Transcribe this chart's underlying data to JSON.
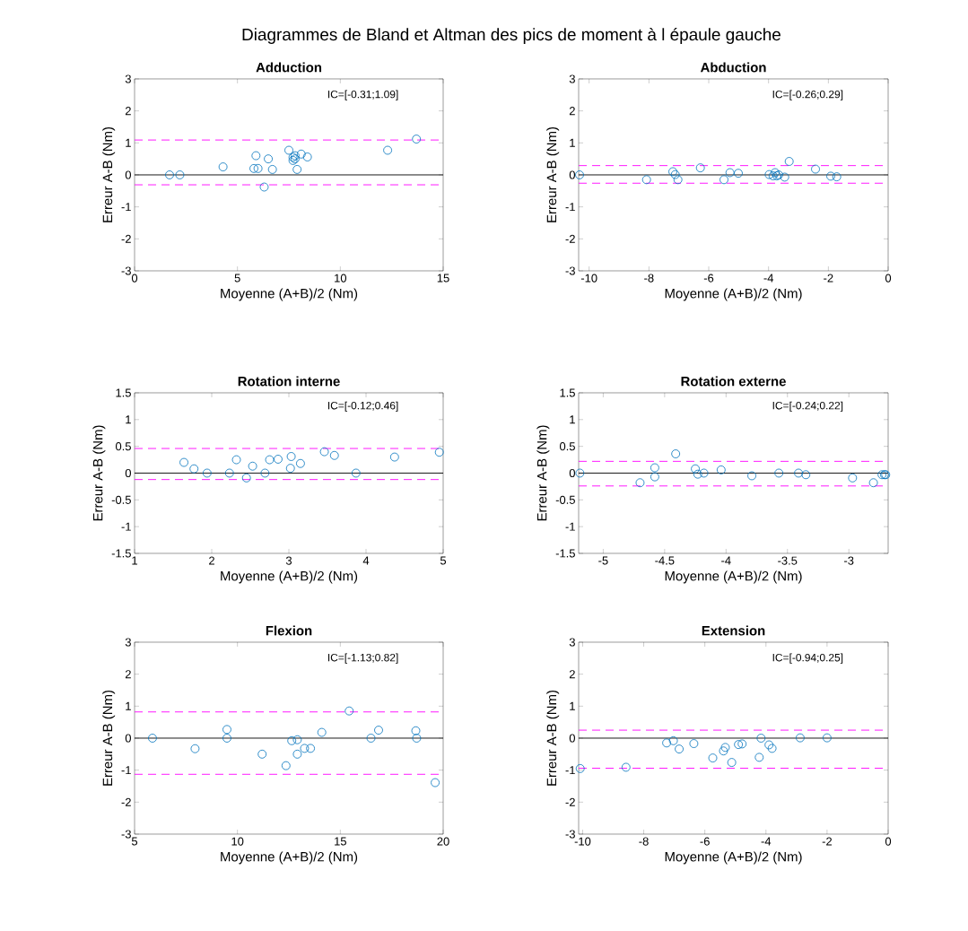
{
  "chart_data": [
    {
      "type": "other",
      "title": "Diagrammes de Bland et Altman des pics de moment à l épaule gauche"
    },
    {
      "type": "scatter",
      "title": "Adduction",
      "xlabel": "Moyenne (A+B)/2 (Nm)",
      "ylabel": "Erreur A-B (Nm)",
      "marker": "circle",
      "xlim": [
        0,
        15
      ],
      "ylim": [
        -3,
        3
      ],
      "xticks": [
        0,
        5,
        10,
        15
      ],
      "yticks": [
        -3,
        -2,
        -1,
        0,
        1,
        2,
        3
      ],
      "annotations": [
        "IC=[-0.31;1.09]"
      ],
      "series": [
        {
          "color": "#0072bd",
          "x": [
            1.7,
            2.2,
            4.3,
            5.8,
            5.9,
            6.0,
            6.3,
            6.5,
            6.7,
            7.5,
            7.7,
            7.7,
            7.8,
            7.8,
            7.9,
            8.1,
            8.4,
            12.3,
            13.7
          ],
          "values": [
            0,
            0,
            0.25,
            0.2,
            0.6,
            0.2,
            -0.38,
            0.5,
            0.17,
            0.77,
            0.45,
            0.55,
            0.6,
            0.5,
            0.17,
            0.65,
            0.56,
            0.77,
            1.12
          ]
        }
      ],
      "ref_lines": [
        {
          "axis": "y",
          "value": 0,
          "color": "#000000"
        },
        {
          "axis": "y",
          "value": 1.09,
          "color": "#ff00ff",
          "line_style": "dashed"
        },
        {
          "axis": "y",
          "value": -0.31,
          "color": "#ff00ff",
          "line_style": "dashed"
        }
      ]
    },
    {
      "type": "scatter",
      "title": "Abduction",
      "xlabel": "Moyenne (A+B)/2 (Nm)",
      "ylabel": "Erreur A-B (Nm)",
      "marker": "circle",
      "xlim": [
        -10.35,
        0
      ],
      "ylim": [
        -3,
        3
      ],
      "xticks": [
        -10,
        -8,
        -6,
        -4,
        -2,
        0
      ],
      "yticks": [
        -3,
        -2,
        -1,
        0,
        1,
        2,
        3
      ],
      "annotations": [
        "IC=[-0.26;0.29]"
      ],
      "series": [
        {
          "color": "#0072bd",
          "x": [
            -10.32,
            -8.08,
            -7.2,
            -7.12,
            -7.03,
            -6.28,
            -5.49,
            -5.29,
            -5.01,
            -3.98,
            -3.85,
            -3.78,
            -3.72,
            -3.66,
            -3.46,
            -3.31,
            -2.43,
            -1.92,
            -1.72
          ],
          "values": [
            0,
            -0.15,
            0.1,
            0.01,
            -0.15,
            0.22,
            -0.15,
            0.07,
            0.05,
            0.01,
            -0.03,
            0.07,
            -0.03,
            0,
            -0.07,
            0.42,
            0.18,
            -0.04,
            -0.06
          ]
        }
      ],
      "ref_lines": [
        {
          "axis": "y",
          "value": 0,
          "color": "#000000"
        },
        {
          "axis": "y",
          "value": 0.29,
          "color": "#ff00ff",
          "line_style": "dashed"
        },
        {
          "axis": "y",
          "value": -0.26,
          "color": "#ff00ff",
          "line_style": "dashed"
        }
      ]
    },
    {
      "type": "scatter",
      "title": "Rotation interne",
      "xlabel": "Moyenne (A+B)/2 (Nm)",
      "ylabel": "Erreur A-B (Nm)",
      "marker": "circle",
      "xlim": [
        1,
        5
      ],
      "ylim": [
        -1.5,
        1.5
      ],
      "xticks": [
        1,
        2,
        3,
        4,
        5
      ],
      "yticks": [
        -1.5,
        -1,
        -0.5,
        0,
        0.5,
        1,
        1.5
      ],
      "annotations": [
        "IC=[-0.12;0.46]"
      ],
      "series": [
        {
          "color": "#0072bd",
          "x": [
            1.64,
            1.77,
            1.94,
            2.23,
            2.32,
            2.45,
            2.53,
            2.69,
            2.75,
            2.86,
            3.02,
            3.03,
            3.15,
            3.46,
            3.59,
            3.87,
            4.37,
            4.95
          ],
          "values": [
            0.2,
            0.08,
            0,
            0,
            0.25,
            -0.09,
            0.13,
            0,
            0.25,
            0.26,
            0.09,
            0.31,
            0.18,
            0.4,
            0.33,
            0,
            0.3,
            0.39
          ]
        }
      ],
      "ref_lines": [
        {
          "axis": "y",
          "value": 0,
          "color": "#000000"
        },
        {
          "axis": "y",
          "value": 0.46,
          "color": "#ff00ff",
          "line_style": "dashed"
        },
        {
          "axis": "y",
          "value": -0.12,
          "color": "#ff00ff",
          "line_style": "dashed"
        }
      ]
    },
    {
      "type": "scatter",
      "title": "Rotation externe",
      "xlabel": "Moyenne (A+B)/2 (Nm)",
      "ylabel": "Erreur A-B (Nm)",
      "marker": "circle",
      "xlim": [
        -5.2,
        -2.68
      ],
      "ylim": [
        -1.5,
        1.5
      ],
      "xticks": [
        -5,
        -4.5,
        -4,
        -3.5,
        -3
      ],
      "yticks": [
        -1.5,
        -1,
        -0.5,
        0,
        0.5,
        1,
        1.5
      ],
      "annotations": [
        "IC=[-0.24;0.22]"
      ],
      "series": [
        {
          "color": "#0072bd",
          "x": [
            -5.19,
            -4.7,
            -4.58,
            -4.58,
            -4.41,
            -4.25,
            -4.23,
            -4.18,
            -4.04,
            -3.79,
            -3.57,
            -3.41,
            -3.35,
            -2.97,
            -2.8,
            -2.73,
            -2.71,
            -2.7
          ],
          "values": [
            0,
            -0.18,
            0.1,
            -0.07,
            0.36,
            0.08,
            -0.02,
            0,
            0.06,
            -0.05,
            0,
            0,
            -0.03,
            -0.09,
            -0.18,
            -0.03,
            -0.03,
            -0.03
          ]
        }
      ],
      "ref_lines": [
        {
          "axis": "y",
          "value": 0,
          "color": "#000000"
        },
        {
          "axis": "y",
          "value": 0.22,
          "color": "#ff00ff",
          "line_style": "dashed"
        },
        {
          "axis": "y",
          "value": -0.24,
          "color": "#ff00ff",
          "line_style": "dashed"
        }
      ]
    },
    {
      "type": "scatter",
      "title": "Flexion",
      "xlabel": "Moyenne (A+B)/2 (Nm)",
      "ylabel": "Erreur A-B (Nm)",
      "marker": "circle",
      "xlim": [
        5,
        20
      ],
      "ylim": [
        -3,
        3
      ],
      "xticks": [
        5,
        10,
        15,
        20
      ],
      "yticks": [
        -3,
        -2,
        -1,
        0,
        1,
        2,
        3
      ],
      "annotations": [
        "IC=[-1.13;0.82]"
      ],
      "series": [
        {
          "color": "#0072bd",
          "x": [
            5.87,
            7.94,
            9.49,
            9.49,
            11.2,
            12.36,
            12.64,
            12.91,
            12.91,
            13.26,
            13.55,
            14.1,
            15.43,
            16.49,
            16.86,
            18.67,
            18.71,
            19.61
          ],
          "values": [
            0,
            -0.33,
            0.27,
            0,
            -0.5,
            -0.86,
            -0.08,
            -0.05,
            -0.5,
            -0.32,
            -0.32,
            0.18,
            0.85,
            0,
            0.25,
            0.23,
            0,
            -1.39
          ]
        }
      ],
      "ref_lines": [
        {
          "axis": "y",
          "value": 0,
          "color": "#000000"
        },
        {
          "axis": "y",
          "value": 0.82,
          "color": "#ff00ff",
          "line_style": "dashed"
        },
        {
          "axis": "y",
          "value": -1.13,
          "color": "#ff00ff",
          "line_style": "dashed"
        }
      ]
    },
    {
      "type": "scatter",
      "title": "Extension",
      "xlabel": "Moyenne (A+B)/2 (Nm)",
      "ylabel": "Erreur A-B (Nm)",
      "marker": "circle",
      "xlim": [
        -10.13,
        0
      ],
      "ylim": [
        -3,
        3
      ],
      "xticks": [
        -10,
        -8,
        -6,
        -4,
        -2,
        0
      ],
      "yticks": [
        -3,
        -2,
        -1,
        0,
        1,
        2,
        3
      ],
      "annotations": [
        "IC=[-0.94;0.25]"
      ],
      "series": [
        {
          "color": "#0072bd",
          "x": [
            -10.08,
            -8.58,
            -7.25,
            -7.03,
            -6.84,
            -6.36,
            -5.74,
            -5.39,
            -5.33,
            -5.12,
            -4.9,
            -4.78,
            -4.22,
            -4.16,
            -3.9,
            -3.8,
            -2.88,
            -2.0
          ],
          "values": [
            -0.95,
            -0.91,
            -0.15,
            -0.08,
            -0.34,
            -0.17,
            -0.62,
            -0.4,
            -0.29,
            -0.76,
            -0.2,
            -0.18,
            -0.6,
            0,
            -0.21,
            -0.32,
            0.01,
            0.01
          ]
        }
      ],
      "ref_lines": [
        {
          "axis": "y",
          "value": 0,
          "color": "#000000"
        },
        {
          "axis": "y",
          "value": 0.25,
          "color": "#ff00ff",
          "line_style": "dashed"
        },
        {
          "axis": "y",
          "value": -0.94,
          "color": "#ff00ff",
          "line_style": "dashed"
        }
      ]
    }
  ]
}
